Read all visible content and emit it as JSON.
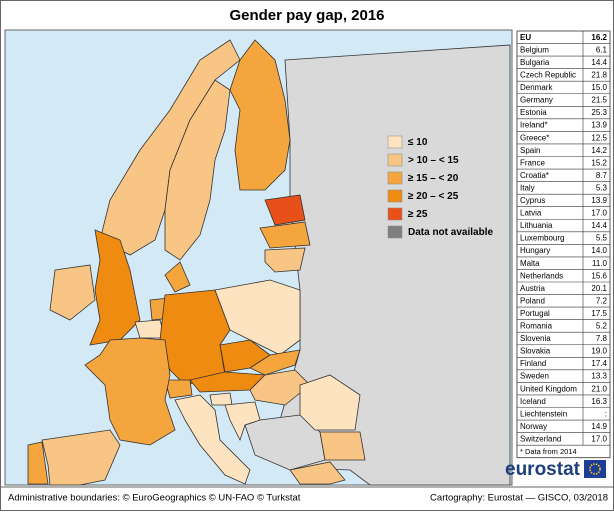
{
  "title": "Gender pay gap, 2016",
  "legend": {
    "items": [
      {
        "label": "≤ 10",
        "color": "#fde3c0"
      },
      {
        "label": "> 10 – < 15",
        "color": "#f9c584"
      },
      {
        "label": "≥ 15 – < 20",
        "color": "#f4a53e"
      },
      {
        "label": "≥ 20 – < 25",
        "color": "#ee8b10"
      },
      {
        "label": "≥ 25",
        "color": "#e8501a"
      },
      {
        "label": "Data not available",
        "color": "#808080"
      }
    ]
  },
  "table": {
    "rows": [
      [
        "EU",
        "16.2"
      ],
      [
        "Belgium",
        "6.1"
      ],
      [
        "Bulgaria",
        "14.4"
      ],
      [
        "Czech Republic",
        "21.8"
      ],
      [
        "Denmark",
        "15.0"
      ],
      [
        "Germany",
        "21.5"
      ],
      [
        "Estonia",
        "25.3"
      ],
      [
        "Ireland*",
        "13.9"
      ],
      [
        "Greece*",
        "12.5"
      ],
      [
        "Spain",
        "14.2"
      ],
      [
        "France",
        "15.2"
      ],
      [
        "Croatia*",
        "8.7"
      ],
      [
        "Italy",
        "5.3"
      ],
      [
        "Cyprus",
        "13.9"
      ],
      [
        "Latvia",
        "17.0"
      ],
      [
        "Lithuania",
        "14.4"
      ],
      [
        "Luxembourg",
        "5.5"
      ],
      [
        "Hungary",
        "14.0"
      ],
      [
        "Malta",
        "11.0"
      ],
      [
        "Netherlands",
        "15.6"
      ],
      [
        "Austria",
        "20.1"
      ],
      [
        "Poland",
        "7.2"
      ],
      [
        "Portugal",
        "17.5"
      ],
      [
        "Romania",
        "5.2"
      ],
      [
        "Slovenia",
        "7.8"
      ],
      [
        "Slovakia",
        "19.0"
      ],
      [
        "Finland",
        "17.4"
      ],
      [
        "Sweden",
        "13.3"
      ],
      [
        "United Kingdom",
        "21.0"
      ],
      [
        "Iceland",
        "16.3"
      ],
      [
        "Liechtenstein",
        ":"
      ],
      [
        "Norway",
        "14.9"
      ],
      [
        "Switzerland",
        "17.0"
      ]
    ],
    "note": "* Data from 2014"
  },
  "logo": "eurostat",
  "footer": {
    "left": "Administrative boundaries: © EuroGeographics © UN-FAO © Turkstat",
    "right": "Cartography: Eurostat — GISCO, 03/2018"
  }
}
